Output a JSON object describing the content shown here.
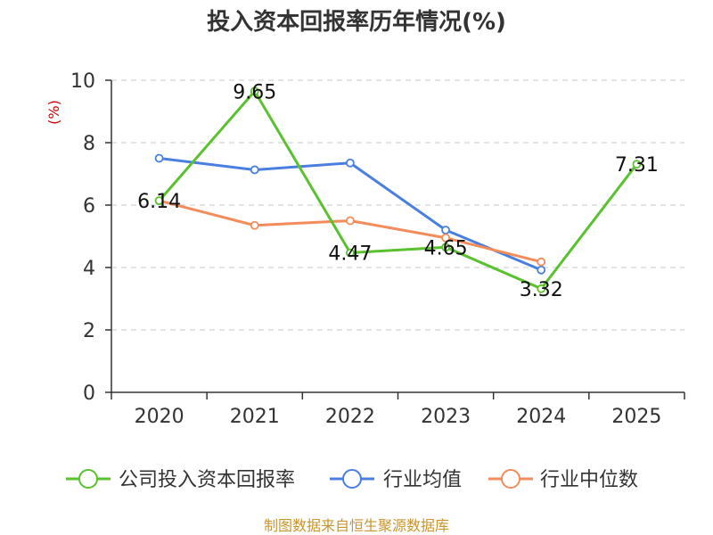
{
  "chart_data": {
    "type": "line",
    "title": "投入资本回报率历年情况(%)",
    "ylabel": "(%)",
    "categories": [
      "2020",
      "2021",
      "2022",
      "2023",
      "2024",
      "2025"
    ],
    "ylim": [
      0,
      10
    ],
    "yticks": [
      0,
      2,
      4,
      6,
      8,
      10
    ],
    "grid": true,
    "legend_position": "bottom",
    "series": [
      {
        "name": "公司投入资本回报率",
        "color": "#5ac12f",
        "values": [
          6.14,
          9.65,
          4.47,
          4.65,
          3.32,
          7.31
        ],
        "labels": [
          "6.14",
          "9.65",
          "4.47",
          "4.65",
          "3.32",
          "7.31"
        ]
      },
      {
        "name": "行业均值",
        "color": "#4a7fe0",
        "values": [
          7.5,
          7.13,
          7.35,
          5.2,
          3.92,
          null
        ]
      },
      {
        "name": "行业中位数",
        "color": "#f28d5b",
        "values": [
          6.14,
          5.35,
          5.5,
          4.95,
          4.18,
          null
        ]
      }
    ]
  },
  "source_text": "制图数据来自恒生聚源数据库"
}
